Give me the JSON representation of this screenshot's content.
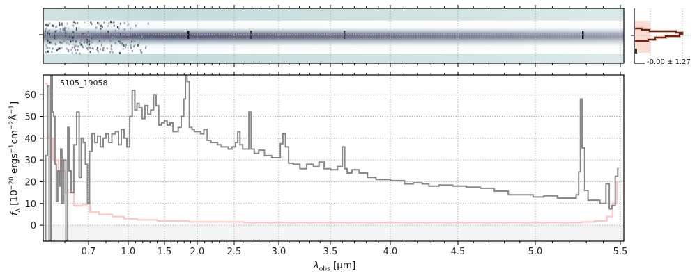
{
  "chart_data": {
    "type": "line",
    "object_label": "5105_19058",
    "xlabel_parts": [
      "λ",
      "obs",
      " [μm]"
    ],
    "ylabel_parts": [
      "f",
      "λ",
      " [10",
      "−20",
      " ergs",
      "−1",
      "cm",
      "−2",
      "Å",
      "−1",
      "]"
    ],
    "xlim": [
      0.52,
      5.52
    ],
    "ylim": [
      -7.3,
      69
    ],
    "x_scale": "pixel-resampled (nonlinear)",
    "x_ticks": [
      0.7,
      1.0,
      1.5,
      2.0,
      2.5,
      3.0,
      3.5,
      4.0,
      4.5,
      5.0,
      5.5
    ],
    "x_tick_labels": [
      "0.7",
      "1.0",
      "1.5",
      "2.0",
      "2.5",
      "3.0",
      "3.5",
      "4.0",
      "4.5",
      "5.0",
      "5.5"
    ],
    "y_ticks": [
      0,
      10,
      20,
      30,
      40,
      50,
      60
    ],
    "y_tick_labels": [
      "0",
      "10",
      "20",
      "30",
      "40",
      "50",
      "60"
    ],
    "grid": true,
    "colors": {
      "flux": "#888888",
      "error": "#ffc4c4",
      "negative_zone": "#f4f4f4",
      "grid": "#b0b0b0",
      "profile": "#6b2e1e",
      "profile_fill": "#fdd5c8",
      "spec2d_bg": "#c5dcdc",
      "spec2d_trace": "#3c3c5a"
    },
    "series": [
      {
        "name": "flux",
        "x": [
          0.525,
          0.533,
          0.538,
          0.546,
          0.551,
          0.556,
          0.561,
          0.566,
          0.571,
          0.577,
          0.582,
          0.587,
          0.592,
          0.6,
          0.609,
          0.615,
          0.621,
          0.632,
          0.644,
          0.656,
          0.665,
          0.674,
          0.682,
          0.691,
          0.7,
          0.712,
          0.728,
          0.744,
          0.76,
          0.776,
          0.792,
          0.811,
          0.833,
          0.861,
          0.889,
          0.914,
          0.943,
          0.971,
          1.0,
          1.04,
          1.07,
          1.11,
          1.13,
          1.17,
          1.21,
          1.25,
          1.29,
          1.33,
          1.37,
          1.4,
          1.44,
          1.48,
          1.52,
          1.56,
          1.61,
          1.65,
          1.69,
          1.73,
          1.78,
          1.81,
          1.83,
          1.86,
          1.9,
          1.94,
          1.97,
          2.02,
          2.07,
          2.11,
          2.16,
          2.21,
          2.25,
          2.3,
          2.35,
          2.4,
          2.44,
          2.5,
          2.53,
          2.55,
          2.58,
          2.61,
          2.65,
          2.68,
          2.7,
          2.75,
          2.8,
          2.88,
          2.96,
          3.0,
          3.03,
          3.05,
          3.08,
          3.11,
          3.17,
          3.24,
          3.3,
          3.37,
          3.41,
          3.47,
          3.53,
          3.59,
          3.61,
          3.63,
          3.65,
          3.71,
          3.77,
          3.85,
          3.91,
          3.97,
          4.03,
          4.08,
          4.13,
          4.21,
          4.26,
          4.31,
          4.41,
          4.51,
          4.6,
          4.69,
          4.78,
          4.87,
          4.96,
          5.01,
          5.09,
          5.17,
          5.23,
          5.25,
          5.26,
          5.27,
          5.28,
          5.3,
          5.32,
          5.36,
          5.4,
          5.43,
          5.44,
          5.46,
          5.48,
          5.49
        ],
        "y": [
          -7,
          32,
          64,
          -7,
          69,
          52,
          50,
          28,
          11,
          25,
          18,
          35,
          10,
          30,
          -7,
          45,
          25,
          15,
          37,
          52,
          22,
          40,
          38,
          28,
          10,
          34,
          42,
          38,
          41,
          36,
          40,
          42,
          38,
          42,
          43,
          37,
          44,
          40,
          36,
          50,
          62,
          53,
          56,
          54,
          49,
          55,
          51,
          53,
          60,
          55,
          46,
          47,
          48,
          46,
          47,
          43,
          43,
          45,
          50,
          58,
          69,
          66,
          45,
          44,
          43,
          43,
          42,
          44,
          39,
          38,
          38,
          37,
          36,
          36,
          35,
          36,
          38,
          43,
          37,
          35,
          35,
          52,
          35,
          33,
          34.5,
          32,
          31,
          31,
          37.5,
          42,
          36,
          28.5,
          28,
          26,
          28,
          27,
          29,
          26,
          25.5,
          27,
          36,
          26,
          24,
          25.5,
          24,
          22,
          21,
          21,
          20.5,
          20.5,
          19,
          19.5,
          19,
          18,
          18.5,
          18,
          17.5,
          17,
          15.7,
          14,
          14,
          13,
          13.5,
          12.5,
          12.5,
          14,
          24.5,
          58,
          35.5,
          16,
          11.5,
          11.5,
          10,
          19,
          7.5,
          9,
          22.5,
          26
        ]
      },
      {
        "name": "error",
        "x": [
          0.525,
          0.546,
          0.566,
          0.587,
          0.621,
          0.656,
          0.691,
          0.728,
          0.792,
          0.914,
          1.0,
          1.25,
          1.56,
          2.16,
          3.0,
          5.25,
          5.3,
          5.4,
          5.44,
          5.47,
          5.49
        ],
        "y": [
          65,
          40,
          30,
          25,
          15,
          9,
          9.5,
          6,
          5,
          4,
          3,
          2.5,
          2,
          1.5,
          1.2,
          1.2,
          1.5,
          2,
          4,
          10,
          20
        ]
      }
    ],
    "profile_panel": {
      "label": "-0.00 ± 1.27"
    }
  }
}
